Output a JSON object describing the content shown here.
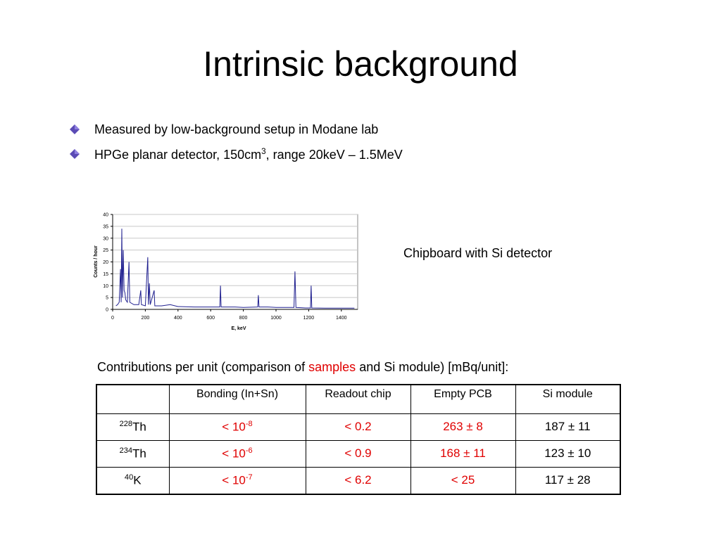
{
  "title": "Intrinsic background",
  "bullets": [
    {
      "parts": [
        {
          "text": "Measured by low-background setup in Modane lab"
        }
      ]
    },
    {
      "parts": [
        {
          "text": "HPGe planar detector, 150cm"
        },
        {
          "sup": "3"
        },
        {
          "text": ", range 20keV – 1.5MeV"
        }
      ]
    }
  ],
  "chart_data": {
    "type": "line",
    "color": "#1f1f8f",
    "x_label": "E, keV",
    "y_label": "Counts / hour",
    "x": [
      20,
      30,
      40,
      48,
      52,
      56,
      60,
      65,
      70,
      75,
      80,
      90,
      100,
      105,
      130,
      160,
      172,
      176,
      200,
      215,
      219,
      225,
      230,
      254,
      258,
      300,
      352,
      400,
      500,
      600,
      656,
      660,
      664,
      750,
      800,
      888,
      892,
      896,
      950,
      1000,
      1110,
      1116,
      1122,
      1180,
      1211,
      1215,
      1219,
      1300,
      1400,
      1480
    ],
    "values": [
      1.5,
      2,
      3,
      17,
      3,
      34,
      5,
      25,
      8,
      7,
      4,
      3,
      20,
      3,
      2,
      2,
      8,
      2,
      1.5,
      22,
      2,
      11,
      2,
      8,
      1.5,
      1.5,
      2,
      1.2,
      1,
      1,
      1,
      10,
      1,
      1,
      0.8,
      1,
      6,
      1,
      1,
      0.8,
      0.8,
      16,
      0.8,
      0.6,
      0.6,
      10,
      0.6,
      0.5,
      0.5,
      0.5
    ],
    "xlim": [
      0,
      1500
    ],
    "xticks": [
      0,
      200,
      400,
      600,
      800,
      1000,
      1200,
      1400
    ],
    "ylim": [
      0,
      40
    ],
    "yticks": [
      0,
      5,
      10,
      15,
      20,
      25,
      30,
      35,
      40
    ],
    "grid": true
  },
  "chart_caption": "Chipboard with Si detector",
  "table_caption": [
    {
      "text": "Contributions per unit (comparison of "
    },
    {
      "text": "samples",
      "color": "#e00000"
    },
    {
      "text": " and Si module) [mBq/unit]:"
    }
  ],
  "table": {
    "header": [
      "Bonding (In+Sn)",
      "Readout chip",
      "Empty PCB",
      "Si module"
    ],
    "rows": [
      {
        "isotope": {
          "mass": "228",
          "symbol": "Th"
        },
        "cells": [
          {
            "text": "< 10",
            "sup": "-8",
            "color": "#e00000"
          },
          {
            "text": "< 0.2",
            "color": "#e00000"
          },
          {
            "text": "263 ± 8",
            "color": "#e00000"
          },
          {
            "text": "187 ± 11",
            "color": "#000000"
          }
        ]
      },
      {
        "isotope": {
          "mass": "234",
          "symbol": "Th"
        },
        "cells": [
          {
            "text": "< 10",
            "sup": "-6",
            "color": "#e00000"
          },
          {
            "text": "< 0.9",
            "color": "#e00000"
          },
          {
            "text": "168 ± 11",
            "color": "#e00000"
          },
          {
            "text": "123 ± 10",
            "color": "#000000"
          }
        ]
      },
      {
        "isotope": {
          "mass": "40",
          "symbol": "K"
        },
        "cells": [
          {
            "text": "< 10",
            "sup": "-7",
            "color": "#e00000"
          },
          {
            "text": "< 6.2",
            "color": "#e00000"
          },
          {
            "text": "< 25",
            "color": "#e00000"
          },
          {
            "text": "117 ± 28",
            "color": "#000000"
          }
        ]
      }
    ]
  }
}
